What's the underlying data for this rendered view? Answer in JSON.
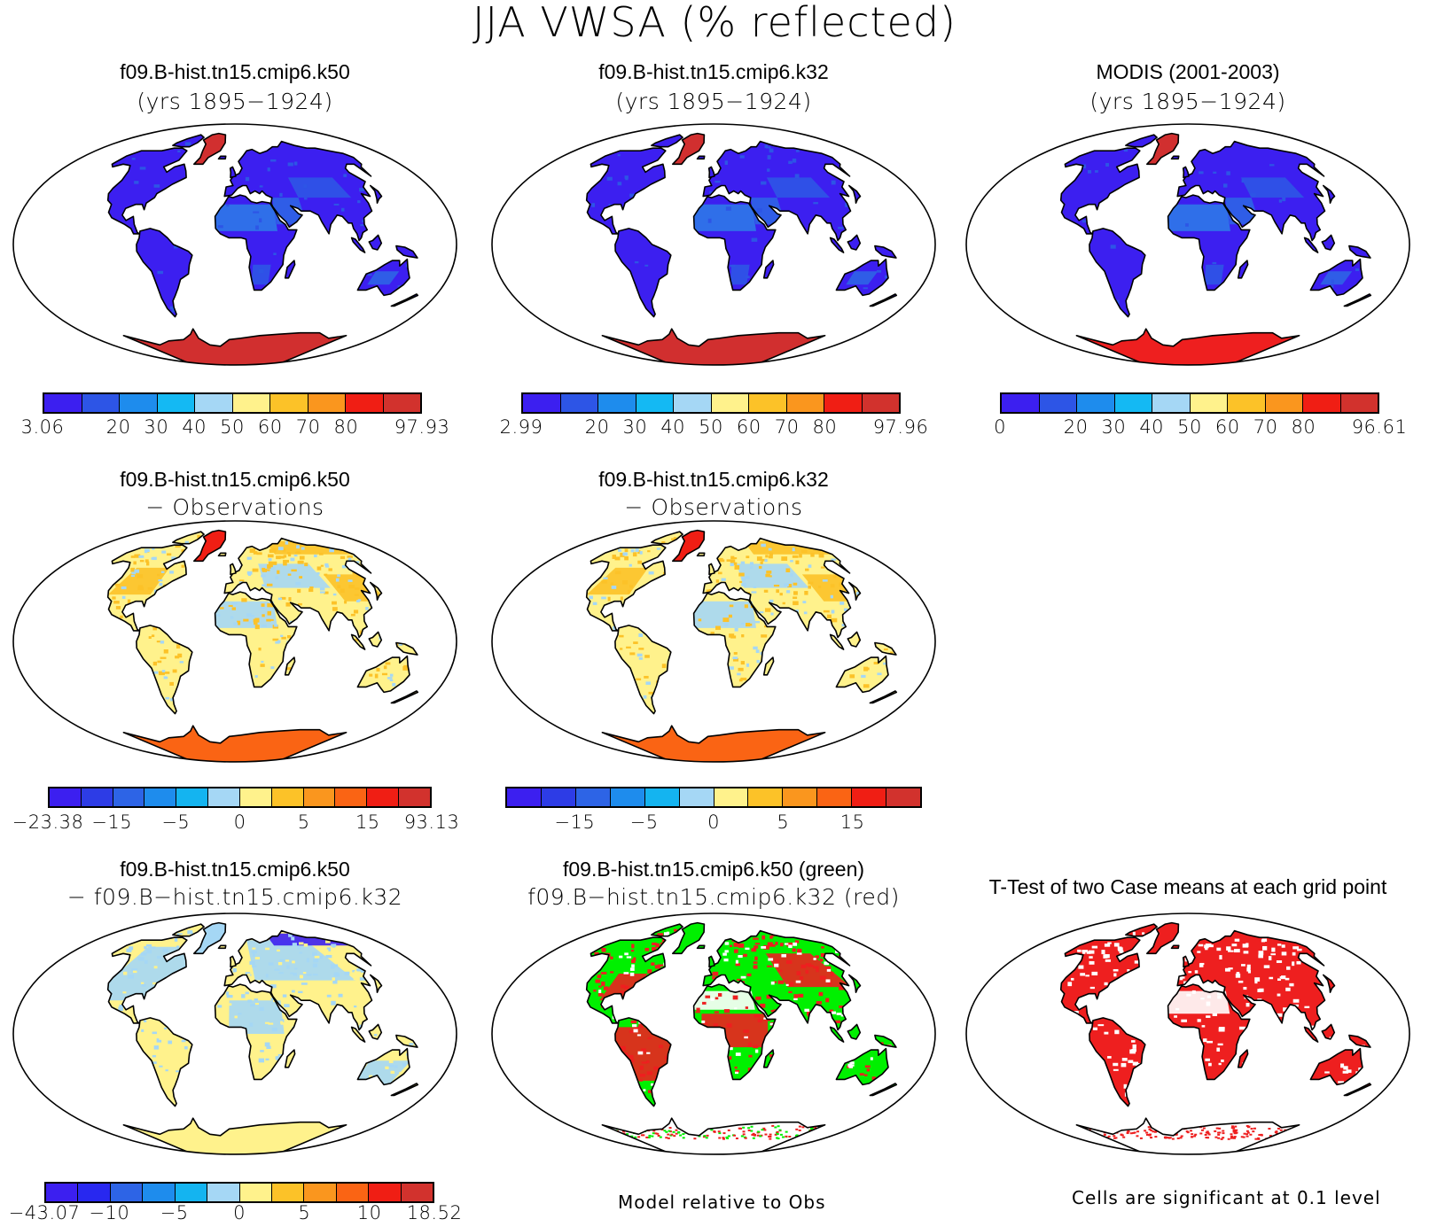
{
  "main_title": "JJA VWSA (% reflected)",
  "panels": [
    {
      "id": "p1",
      "title1": "f09.B-hist.tn15.cmip6.k50",
      "title2": "(yrs 1895−1924)",
      "scheme": "abs",
      "antarctica": "#d12f2f",
      "greenland": "#d12f2f"
    },
    {
      "id": "p2",
      "title1": "f09.B-hist.tn15.cmip6.k32",
      "title2": "(yrs 1895−1924)",
      "scheme": "abs",
      "antarctica": "#d12f2f",
      "greenland": "#d12f2f"
    },
    {
      "id": "p3",
      "title1": "MODIS (2001-2003)",
      "title2": "(yrs 1895−1924)",
      "scheme": "abs",
      "antarctica": "#ee1f1f",
      "greenland": "#d12f2f"
    },
    {
      "id": "p4",
      "title1": "f09.B-hist.tn15.cmip6.k50",
      "title2": "− Observations",
      "scheme": "diff"
    },
    {
      "id": "p5",
      "title1": "f09.B-hist.tn15.cmip6.k32",
      "title2": "− Observations",
      "scheme": "diff"
    },
    {
      "id": "p7",
      "title1": "f09.B-hist.tn15.cmip6.k50",
      "title2": "− f09.B−hist.tn15.cmip6.k32",
      "scheme": "diff2"
    },
    {
      "id": "p8",
      "title1": "f09.B-hist.tn15.cmip6.k50 (green)",
      "title2": "f09.B−hist.tn15.cmip6.k32 (red)",
      "scheme": "greenred"
    },
    {
      "id": "p9",
      "title1": "T-Test of two Case means at each grid point",
      "title2": "",
      "scheme": "ttest"
    }
  ],
  "colorbars": [
    {
      "id": "cb1",
      "colors": [
        "#3c1ff0",
        "#2d55e6",
        "#1e8ced",
        "#14b9f3",
        "#a5d7f5",
        "#fff28c",
        "#fcc228",
        "#fa961e",
        "#f01e14",
        "#d2322d"
      ],
      "labels": [
        "3.06",
        "20",
        "30",
        "40",
        "50",
        "60",
        "70",
        "80",
        "97.93"
      ]
    },
    {
      "id": "cb2",
      "colors": [
        "#3c1ff0",
        "#2d55e6",
        "#1e8ced",
        "#14b9f3",
        "#a5d7f5",
        "#fff28c",
        "#fcc228",
        "#fa961e",
        "#f01e14",
        "#d2322d"
      ],
      "labels": [
        "2.99",
        "20",
        "30",
        "40",
        "50",
        "60",
        "70",
        "80",
        "97.96"
      ]
    },
    {
      "id": "cb3",
      "colors": [
        "#3c1ff0",
        "#2d55e6",
        "#1e8ced",
        "#14b9f3",
        "#a5d7f5",
        "#fff28c",
        "#fcc228",
        "#fa961e",
        "#f01e14",
        "#d2322d"
      ],
      "labels": [
        "0",
        "20",
        "30",
        "40",
        "50",
        "60",
        "70",
        "80",
        "96.61"
      ]
    },
    {
      "id": "cb4",
      "colors": [
        "#3c1ff0",
        "#2d3ce6",
        "#2d64e6",
        "#1e8ced",
        "#14b4f0",
        "#a5d7f5",
        "#fff28c",
        "#fcc228",
        "#fa961e",
        "#fa6414",
        "#f01e14",
        "#d2322d"
      ],
      "labels": [
        "−23.38",
        "−15",
        "−5",
        "0",
        "5",
        "15",
        "93.13"
      ]
    },
    {
      "id": "cb5",
      "colors": [
        "#3c1ff0",
        "#2d3ce6",
        "#2d64e6",
        "#1e8ced",
        "#14b4f0",
        "#a5d7f5",
        "#fff28c",
        "#fcc228",
        "#fa961e",
        "#fa6414",
        "#f01e14",
        "#d2322d"
      ],
      "labels": [
        "−15",
        "−5",
        "0",
        "5",
        "15"
      ]
    },
    {
      "id": "cb7",
      "colors": [
        "#3c1ff0",
        "#2828f0",
        "#2d64e6",
        "#1e8ced",
        "#14b4f0",
        "#a5d7f5",
        "#fff28c",
        "#fcc228",
        "#fa961e",
        "#fa6414",
        "#f01e14",
        "#d2322d"
      ],
      "labels": [
        "−43.07",
        "−10",
        "−5",
        "0",
        "5",
        "10",
        "18.52"
      ]
    }
  ],
  "notes": {
    "model_relative": "Model relative to Obs",
    "significance": "Cells are significant at 0.1 level"
  }
}
